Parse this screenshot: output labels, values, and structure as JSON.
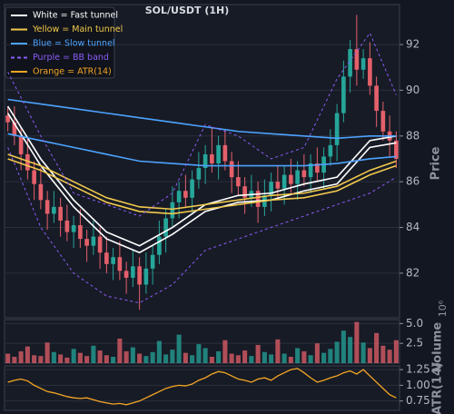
{
  "chart_data": [
    {
      "type": "candlestick",
      "title": "SOL/USDT (1H)",
      "ylabel": "Price",
      "x": [
        0,
        1,
        2,
        3,
        4,
        5,
        6,
        7,
        8,
        9,
        10,
        11,
        12,
        13,
        14,
        15,
        16,
        17,
        18,
        19,
        20,
        21,
        22,
        23,
        24,
        25,
        26,
        27,
        28,
        29,
        30,
        31,
        32,
        33,
        34,
        35,
        36,
        37,
        38,
        39,
        40,
        41,
        42,
        43,
        44,
        45,
        46,
        47,
        48,
        49,
        50,
        51,
        52,
        53,
        54,
        55,
        56,
        57,
        58,
        59
      ],
      "open": [
        88.9,
        88.6,
        88.0,
        87.2,
        86.5,
        85.9,
        85.2,
        84.6,
        84.9,
        84.3,
        83.8,
        84.1,
        83.5,
        83.2,
        83.6,
        82.9,
        82.4,
        82.7,
        82.1,
        81.8,
        82.3,
        81.5,
        82.2,
        82.8,
        83.6,
        84.4,
        85.1,
        85.6,
        85.3,
        86.1,
        86.6,
        87.2,
        86.8,
        87.6,
        86.9,
        86.2,
        85.8,
        85.3,
        85.6,
        84.9,
        85.4,
        86.0,
        85.7,
        86.3,
        85.9,
        86.5,
        86.2,
        86.8,
        86.4,
        87.1,
        87.6,
        89.0,
        90.6,
        91.8,
        90.9,
        91.4,
        90.2,
        89.1,
        88.2,
        87.8
      ],
      "high": [
        89.3,
        89.3,
        88.4,
        87.9,
        86.9,
        86.6,
        85.6,
        85.6,
        85.3,
        85.0,
        84.5,
        84.8,
        83.9,
        84.3,
        84.0,
        83.6,
        83.1,
        83.4,
        82.5,
        83.0,
        82.7,
        82.9,
        83.2,
        84.3,
        84.8,
        85.8,
        86.0,
        86.3,
        86.5,
        87.3,
        87.6,
        88.4,
        88.0,
        88.3,
        87.3,
        86.9,
        86.2,
        86.3,
        86.0,
        86.1,
        86.4,
        86.7,
        86.7,
        87.0,
        86.9,
        87.2,
        87.2,
        87.5,
        87.5,
        88.3,
        89.4,
        91.3,
        92.2,
        93.3,
        91.8,
        92.1,
        90.6,
        89.5,
        88.9,
        88.2
      ],
      "low": [
        88.2,
        87.6,
        86.5,
        86.1,
        85.2,
        84.8,
        83.9,
        84.2,
        83.6,
        83.4,
        83.1,
        83.1,
        82.5,
        82.8,
        82.2,
        82.0,
        81.7,
        81.7,
        81.1,
        81.4,
        80.4,
        81.1,
        81.5,
        82.4,
        82.9,
        84.0,
        84.4,
        84.9,
        84.6,
        85.7,
        85.9,
        86.4,
        86.1,
        86.5,
        85.5,
        85.4,
        84.6,
        84.9,
        84.2,
        84.5,
        84.7,
        85.3,
        85.0,
        85.5,
        85.2,
        85.8,
        85.5,
        86.0,
        85.7,
        86.7,
        86.9,
        88.6,
        89.9,
        90.2,
        90.5,
        89.8,
        88.4,
        87.8,
        87.1,
        86.6
      ],
      "close": [
        88.6,
        88.0,
        87.2,
        86.5,
        85.9,
        85.2,
        84.6,
        84.9,
        84.3,
        83.8,
        84.1,
        83.5,
        83.2,
        83.6,
        82.9,
        82.4,
        82.7,
        82.1,
        81.8,
        82.3,
        81.5,
        82.2,
        82.8,
        83.6,
        84.4,
        85.1,
        85.6,
        85.3,
        86.1,
        86.6,
        87.2,
        86.8,
        87.6,
        86.9,
        86.2,
        85.8,
        85.3,
        85.6,
        84.9,
        85.4,
        86.0,
        85.7,
        86.3,
        85.9,
        86.5,
        86.2,
        86.8,
        86.4,
        87.1,
        87.6,
        89.0,
        90.6,
        91.8,
        90.9,
        91.4,
        90.2,
        89.1,
        88.2,
        87.8,
        87.0
      ],
      "up_color": "#26a69a",
      "down_color": "#e4606a",
      "ylim": [
        80.05,
        93.75
      ],
      "yticks": [
        82,
        84,
        86,
        88,
        90,
        92
      ],
      "grid": true,
      "overlays": [
        {
          "name": "White = Fast tunnel",
          "color": "#ffffff",
          "dash": false,
          "x": [
            0,
            5,
            10,
            15,
            20,
            25,
            30,
            35,
            40,
            45,
            50,
            55,
            59
          ],
          "upper": [
            89.3,
            87.0,
            85.2,
            83.8,
            83.2,
            84.0,
            85.0,
            85.4,
            85.5,
            85.9,
            86.2,
            87.8,
            88.0
          ],
          "lower": [
            89.0,
            86.7,
            84.9,
            83.5,
            82.9,
            83.7,
            84.7,
            85.1,
            85.2,
            85.6,
            85.9,
            87.5,
            87.7
          ]
        },
        {
          "name": "Yellow = Main tunnel",
          "color": "#f2c94c",
          "dash": false,
          "x": [
            0,
            5,
            10,
            15,
            20,
            25,
            30,
            35,
            40,
            45,
            50,
            55,
            59
          ],
          "upper": [
            87.2,
            86.7,
            86.0,
            85.3,
            84.9,
            84.8,
            85.0,
            85.2,
            85.4,
            85.5,
            85.8,
            86.5,
            86.9
          ],
          "lower": [
            87.0,
            86.5,
            85.8,
            85.1,
            84.7,
            84.6,
            84.8,
            85.0,
            85.2,
            85.3,
            85.6,
            86.3,
            86.7
          ]
        },
        {
          "name": "Blue = Slow tunnel",
          "color": "#4da3ff",
          "dash": false,
          "x": [
            0,
            5,
            10,
            15,
            20,
            25,
            30,
            35,
            40,
            45,
            50,
            55,
            59
          ],
          "upper": [
            89.6,
            89.4,
            89.2,
            89.0,
            88.8,
            88.6,
            88.4,
            88.2,
            88.1,
            88.0,
            87.9,
            88.0,
            88.0
          ],
          "lower": [
            88.1,
            87.8,
            87.5,
            87.2,
            86.9,
            86.8,
            86.7,
            86.7,
            86.7,
            86.7,
            86.8,
            87.0,
            87.1
          ]
        },
        {
          "name": "Purple = BB band",
          "color": "#8a5cf6",
          "dash": true,
          "x": [
            0,
            5,
            10,
            15,
            20,
            25,
            30,
            35,
            40,
            45,
            50,
            55,
            59
          ],
          "upper": [
            90.8,
            88.0,
            85.5,
            85.0,
            84.5,
            85.5,
            88.5,
            88.0,
            87.0,
            87.5,
            90.5,
            92.5,
            89.8
          ],
          "lower": [
            87.5,
            84.0,
            82.0,
            81.0,
            80.7,
            81.5,
            83.0,
            83.5,
            84.0,
            84.5,
            85.0,
            85.5,
            86.2
          ]
        }
      ]
    },
    {
      "type": "bar",
      "ylabel": "Volume",
      "offset_text": "10⁶",
      "values": [
        1.2,
        0.8,
        1.5,
        2.1,
        1.0,
        0.9,
        2.6,
        1.4,
        1.1,
        0.7,
        1.8,
        1.3,
        0.9,
        2.2,
        1.6,
        1.0,
        0.8,
        3.1,
        1.5,
        2.0,
        1.2,
        0.9,
        1.4,
        2.8,
        1.1,
        1.7,
        3.6,
        1.3,
        1.0,
        2.4,
        1.9,
        0.8,
        1.5,
        2.9,
        1.2,
        1.0,
        1.6,
        0.9,
        2.3,
        1.4,
        1.1,
        3.0,
        1.2,
        0.8,
        1.9,
        1.5,
        1.0,
        2.5,
        1.3,
        1.8,
        2.7,
        4.1,
        3.3,
        5.2,
        2.6,
        1.9,
        3.8,
        2.2,
        1.7,
        2.9
      ],
      "ylim": [
        0,
        5.5
      ],
      "yticks": [
        2.5,
        {
          "value": 5,
          "label": "5.0"
        }
      ],
      "grid": true
    },
    {
      "type": "line",
      "ylabel": "ATR(14)",
      "series": [
        {
          "name": "Orange = ATR(14)",
          "color": "#f5a623",
          "values": [
            1.05,
            1.08,
            1.1,
            1.07,
            1.0,
            0.95,
            0.9,
            0.88,
            0.85,
            0.82,
            0.8,
            0.79,
            0.8,
            0.77,
            0.74,
            0.72,
            0.7,
            0.71,
            0.69,
            0.72,
            0.75,
            0.8,
            0.85,
            0.9,
            0.95,
            0.98,
            1.0,
            0.99,
            1.02,
            1.08,
            1.12,
            1.18,
            1.22,
            1.2,
            1.15,
            1.1,
            1.08,
            1.05,
            1.1,
            1.12,
            1.08,
            1.15,
            1.2,
            1.25,
            1.27,
            1.2,
            1.12,
            1.05,
            1.08,
            1.12,
            1.15,
            1.2,
            1.23,
            1.18,
            1.25,
            1.15,
            1.05,
            0.95,
            0.85,
            0.8
          ]
        }
      ],
      "ylim": [
        0.6,
        1.31
      ],
      "yticks": [
        1.25,
        {
          "value": 1,
          "label": "1.00"
        },
        0.75
      ],
      "grid": true
    }
  ]
}
